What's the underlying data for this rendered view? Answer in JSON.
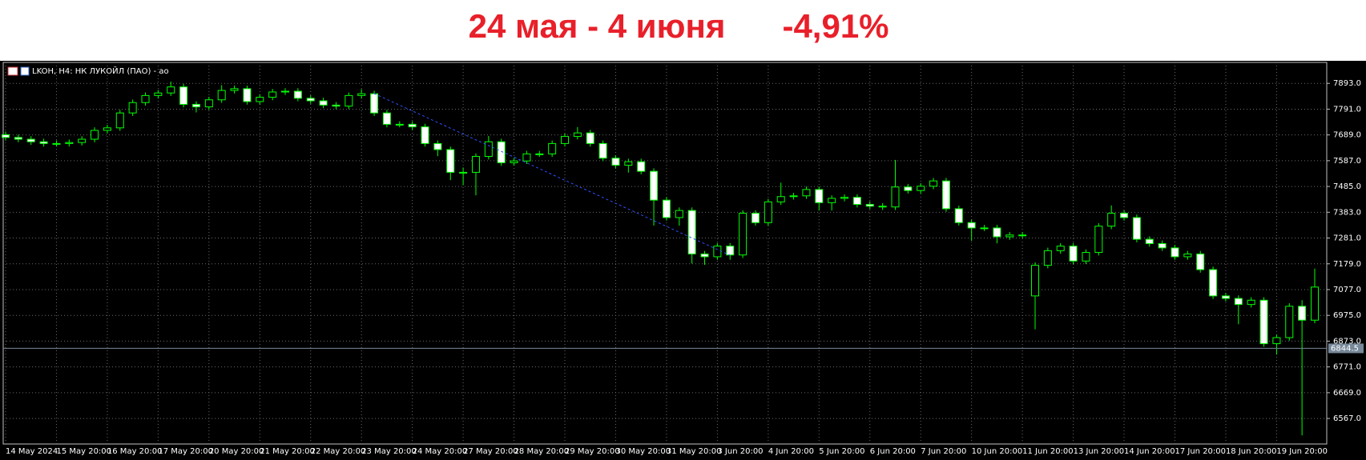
{
  "chart_data": {
    "type": "candlestick",
    "title": "24 мая - 4 июня",
    "change": "-4,91%",
    "header": "LKOH, H4:  НК ЛУКОЙЛ (ПАО) - ao",
    "categories": [
      "14 May 2024",
      null,
      null,
      null,
      "15 May 20:00",
      null,
      null,
      null,
      "16 May 20:00",
      null,
      null,
      null,
      "17 May 20:00",
      null,
      null,
      null,
      "20 May 20:00",
      null,
      null,
      null,
      "21 May 20:00",
      null,
      null,
      null,
      "22 May 20:00",
      null,
      null,
      null,
      "23 May 20:00",
      null,
      null,
      null,
      "24 May 20:00",
      null,
      null,
      null,
      "27 May 20:00",
      null,
      null,
      null,
      "28 May 20:00",
      null,
      null,
      null,
      "29 May 20:00",
      null,
      null,
      null,
      "30 May 20:00",
      null,
      null,
      null,
      "31 May 20:00",
      null,
      null,
      null,
      "3 Jun 20:00",
      null,
      null,
      null,
      "4 Jun 20:00",
      null,
      null,
      null,
      "5 Jun 20:00",
      null,
      null,
      null,
      "6 Jun 20:00",
      null,
      null,
      null,
      "7 Jun 20:00",
      null,
      null,
      null,
      "10 Jun 20:00",
      null,
      null,
      null,
      "11 Jun 20:00",
      null,
      null,
      null,
      "13 Jun 20:00",
      null,
      null,
      null,
      "14 Jun 20:00",
      null,
      null,
      null,
      "17 Jun 20:00",
      null,
      null,
      null,
      "18 Jun 20:00",
      null,
      null,
      null,
      "19 Jun 20:00",
      null,
      null,
      null
    ],
    "open": [
      7690,
      7679,
      7672,
      7662,
      7655,
      7655,
      7659,
      7672,
      7707,
      7717,
      7776,
      7817,
      7845,
      7855,
      7879,
      7810,
      7800,
      7828,
      7865,
      7872,
      7821,
      7838,
      7859,
      7862,
      7834,
      7824,
      7807,
      7803,
      7845,
      7852,
      7776,
      7731,
      7731,
      7721,
      7655,
      7631,
      7541,
      7541,
      7604,
      7662,
      7579,
      7586,
      7614,
      7614,
      7655,
      7683,
      7697,
      7655,
      7597,
      7569,
      7583,
      7545,
      7431,
      7362,
      7390,
      7218,
      7207,
      7249,
      7214,
      7379,
      7342,
      7424,
      7445,
      7448,
      7473,
      7421,
      7438,
      7442,
      7414,
      7407,
      7404,
      7483,
      7469,
      7486,
      7507,
      7397,
      7342,
      7321,
      7321,
      7286,
      7293,
      7052,
      7173,
      7231,
      7249,
      7190,
      7224,
      7328,
      7379,
      7362,
      7276,
      7259,
      7242,
      7207,
      7218,
      7156,
      7052,
      7042,
      7018,
      7035,
      6863,
      6887,
      7011,
      6956
    ],
    "high": [
      7702,
      7691,
      7684,
      7674,
      7667,
      7671,
      7684,
      7719,
      7729,
      7788,
      7829,
      7857,
      7867,
      7900,
      7891,
      7822,
      7840,
      7886,
      7884,
      7884,
      7850,
      7871,
      7874,
      7874,
      7846,
      7836,
      7819,
      7857,
      7870,
      7864,
      7788,
      7743,
      7743,
      7733,
      7667,
      7643,
      7560,
      7616,
      7685,
      7674,
      7598,
      7626,
      7626,
      7667,
      7695,
      7720,
      7709,
      7667,
      7609,
      7595,
      7595,
      7557,
      7443,
      7402,
      7402,
      7230,
      7261,
      7261,
      7391,
      7391,
      7436,
      7500,
      7460,
      7485,
      7485,
      7450,
      7454,
      7454,
      7426,
      7419,
      7590,
      7495,
      7498,
      7519,
      7519,
      7409,
      7354,
      7333,
      7333,
      7305,
      7305,
      7185,
      7243,
      7261,
      7261,
      7236,
      7340,
      7410,
      7391,
      7374,
      7288,
      7271,
      7254,
      7230,
      7230,
      7168,
      7064,
      7054,
      7047,
      7047,
      6899,
      7023,
      7035,
      7160
    ],
    "low": [
      7667,
      7660,
      7650,
      7643,
      7643,
      7643,
      7647,
      7660,
      7695,
      7705,
      7764,
      7805,
      7833,
      7843,
      7798,
      7778,
      7788,
      7816,
      7853,
      7809,
      7809,
      7826,
      7847,
      7822,
      7812,
      7795,
      7791,
      7791,
      7833,
      7764,
      7719,
      7719,
      7709,
      7643,
      7605,
      7510,
      7490,
      7450,
      7592,
      7567,
      7567,
      7574,
      7602,
      7602,
      7643,
      7671,
      7643,
      7585,
      7557,
      7540,
      7533,
      7330,
      7350,
      7330,
      7180,
      7175,
      7195,
      7195,
      7202,
      7330,
      7330,
      7412,
      7433,
      7436,
      7390,
      7390,
      7426,
      7402,
      7395,
      7392,
      7392,
      7457,
      7457,
      7474,
      7385,
      7330,
      7270,
      7309,
      7260,
      7274,
      7281,
      6920,
      7161,
      7219,
      7178,
      7178,
      7212,
      7316,
      7350,
      7264,
      7247,
      7230,
      7195,
      7195,
      7144,
      7040,
      7030,
      6940,
      7006,
      6851,
      6820,
      6875,
      6500,
      6944
    ],
    "close": [
      7679,
      7672,
      7662,
      7655,
      7655,
      7659,
      7672,
      7707,
      7717,
      7776,
      7817,
      7845,
      7855,
      7879,
      7810,
      7800,
      7828,
      7865,
      7872,
      7821,
      7838,
      7859,
      7862,
      7834,
      7824,
      7807,
      7803,
      7845,
      7852,
      7776,
      7731,
      7731,
      7721,
      7655,
      7631,
      7541,
      7541,
      7604,
      7662,
      7579,
      7586,
      7614,
      7614,
      7655,
      7683,
      7697,
      7655,
      7597,
      7569,
      7583,
      7545,
      7431,
      7362,
      7390,
      7218,
      7207,
      7249,
      7214,
      7379,
      7342,
      7424,
      7445,
      7448,
      7473,
      7421,
      7438,
      7442,
      7414,
      7407,
      7404,
      7483,
      7469,
      7486,
      7507,
      7397,
      7342,
      7321,
      7321,
      7286,
      7293,
      7293,
      7173,
      7231,
      7249,
      7190,
      7224,
      7328,
      7379,
      7362,
      7276,
      7259,
      7242,
      7207,
      7218,
      7156,
      7052,
      7042,
      7018,
      7035,
      6863,
      6887,
      7011,
      6956,
      7087
    ],
    "ylim": [
      6466,
      7976
    ],
    "yticks": [
      {
        "value": 7893,
        "label": "7893.0"
      },
      {
        "value": 7791,
        "label": "7791.0"
      },
      {
        "value": 7689,
        "label": "7689.0"
      },
      {
        "value": 7587,
        "label": "7587.0"
      },
      {
        "value": 7485,
        "label": "7485.0"
      },
      {
        "value": 7383,
        "label": "7383.0"
      },
      {
        "value": 7281,
        "label": "7281.0"
      },
      {
        "value": 7179,
        "label": "7179.0"
      },
      {
        "value": 7077,
        "label": "7077.0"
      },
      {
        "value": 6975,
        "label": "6975.0"
      },
      {
        "value": 6873,
        "label": "6873.0"
      },
      {
        "value": 6771,
        "label": "6771.0"
      },
      {
        "value": 6669,
        "label": "6669.0"
      },
      {
        "value": 6567,
        "label": "6567.0"
      }
    ],
    "current_price": 6844.5,
    "grid": true,
    "up_color": "#00ff00",
    "up_fill": "#000000",
    "down_color": "#00ff00",
    "down_fill": "#ffffff",
    "title_color": "#e8202a"
  }
}
